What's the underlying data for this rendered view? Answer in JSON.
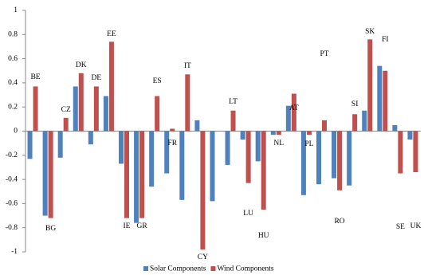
{
  "chart_data": {
    "type": "bar",
    "categories": [
      "BE",
      "BG",
      "CZ",
      "DK",
      "DE",
      "EE",
      "IE",
      "GR",
      "ES",
      "FR",
      "IT",
      "CY",
      null,
      "LT",
      "LU",
      "HU",
      "NL",
      "AT",
      "PL",
      "PT",
      "RO",
      "SI",
      "SK",
      "FI",
      "SE",
      "UK"
    ],
    "series": [
      {
        "name": "Solar Components",
        "color": "#4f81bd",
        "values": [
          -0.23,
          -0.7,
          -0.22,
          0.37,
          -0.11,
          0.29,
          -0.27,
          -0.76,
          -0.46,
          -0.35,
          -0.57,
          0.09,
          -0.58,
          -0.28,
          -0.07,
          -0.25,
          -0.03,
          0.21,
          -0.53,
          -0.44,
          -0.39,
          -0.45,
          0.17,
          0.54,
          0.05,
          -0.07
        ]
      },
      {
        "name": "Wind Components",
        "color": "#c0504d",
        "values": [
          0.37,
          -0.72,
          0.11,
          0.48,
          0.37,
          0.74,
          -0.72,
          -0.72,
          0.29,
          0.02,
          0.47,
          -0.98,
          null,
          0.17,
          -0.43,
          -0.65,
          -0.03,
          0.31,
          -0.03,
          0.09,
          -0.49,
          0.14,
          0.76,
          0.5,
          -0.35,
          -0.34
        ]
      }
    ],
    "ylim": [
      -1,
      1
    ],
    "yticks": [
      -1,
      -0.8,
      -0.6,
      -0.4,
      -0.2,
      0,
      0.2,
      0.4,
      0.6,
      0.8,
      1
    ],
    "legend": "bottom"
  }
}
